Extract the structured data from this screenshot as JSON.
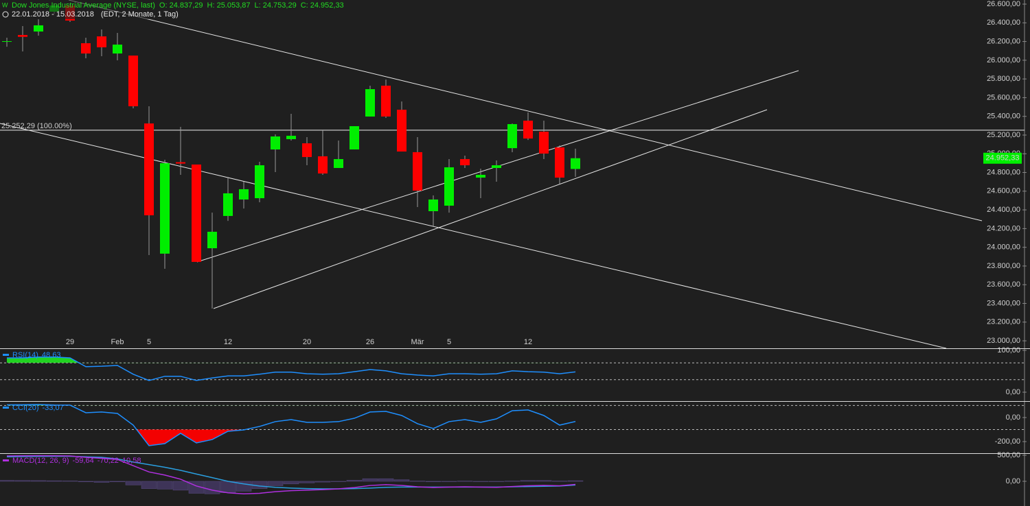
{
  "header": {
    "title": "Dow Jones Industrial Average (NYSE, last)",
    "ohlc": [
      "O: 24.837,29",
      "H: 25.053,87",
      "L: 24.753,29",
      "C: 24.952,33"
    ],
    "range": "22.01.2018 - 15.03.2018",
    "info": "(EDT, 2 Monate, 1 Tag)"
  },
  "chart_data": [
    {
      "type": "candlestick",
      "categories": [
        null,
        null,
        null,
        null,
        "29",
        null,
        null,
        "Feb",
        null,
        "5",
        null,
        null,
        null,
        null,
        "12",
        null,
        null,
        null,
        null,
        "20",
        null,
        null,
        null,
        "26",
        null,
        null,
        "Mär",
        null,
        "5",
        null,
        null,
        null,
        null,
        "12",
        null,
        null,
        null
      ],
      "open": [
        26204,
        26270,
        26307,
        26519,
        26585,
        26182,
        26255,
        26072,
        26050,
        25324,
        23932,
        24910,
        24885,
        23990,
        24335,
        24511,
        24525,
        25046,
        25156,
        25112,
        24973,
        24848,
        25046,
        25398,
        25728,
        25471,
        25017,
        24386,
        24445,
        24943,
        24745,
        24848,
        25060,
        25354,
        25236,
        25068,
        24837.29
      ],
      "high": [
        26241,
        26365,
        26439,
        26607,
        26607,
        26241,
        26329,
        26292,
        26050,
        25508,
        24936,
        25288,
        24885,
        24371,
        24753,
        24701,
        24914,
        25207,
        25427,
        25178,
        25251,
        25141,
        25295,
        25728,
        25794,
        25559,
        25178,
        24555,
        24943,
        24980,
        24841,
        24929,
        25324,
        25442,
        25354,
        25090,
        25053.87
      ],
      "low": [
        26145,
        26094,
        26263,
        26497,
        26409,
        26021,
        26043,
        25999,
        25486,
        23917,
        23770,
        24775,
        23844,
        23345,
        24283,
        24415,
        24481,
        24804,
        25141,
        24877,
        24775,
        24848,
        25046,
        25398,
        25383,
        25024,
        24430,
        24225,
        24371,
        24848,
        24525,
        24701,
        25017,
        25148,
        24943,
        24679,
        24753.29
      ],
      "close": [
        26204,
        26250,
        26373,
        26585,
        26424,
        26072,
        26138,
        26167,
        25508,
        24342,
        24899,
        24895,
        23844,
        24166,
        24577,
        24621,
        24877,
        25185,
        25192,
        24965,
        24789,
        24943,
        25295,
        25691,
        25398,
        25024,
        24606,
        24511,
        24855,
        24877,
        24775,
        24877,
        25317,
        25163,
        25002,
        24745,
        24952.33
      ],
      "up_color": "#00ee00",
      "down_color": "#ff0000",
      "ylim": [
        22920,
        26644
      ],
      "yticks": [
        {
          "value": 26600,
          "label": "26.600,00"
        },
        {
          "value": 26400,
          "label": "26.400,00"
        },
        {
          "value": 26200,
          "label": "26.200,00"
        },
        {
          "value": 26000,
          "label": "26.000,00"
        },
        {
          "value": 25800,
          "label": "25.800,00"
        },
        {
          "value": 25600,
          "label": "25.600,00"
        },
        {
          "value": 25400,
          "label": "25.400,00"
        },
        {
          "value": 25200,
          "label": "25.200,00"
        },
        {
          "value": 25000,
          "label": "25.000,00"
        },
        {
          "value": 24800,
          "label": "24.800,00"
        },
        {
          "value": 24600,
          "label": "24.600,00"
        },
        {
          "value": 24400,
          "label": "24.400,00"
        },
        {
          "value": 24200,
          "label": "24.200,00"
        },
        {
          "value": 24000,
          "label": "24.000,00"
        },
        {
          "value": 23800,
          "label": "23.800,00"
        },
        {
          "value": 23600,
          "label": "23.600,00"
        },
        {
          "value": 23400,
          "label": "23.400,00"
        },
        {
          "value": 23200,
          "label": "23.200,00"
        },
        {
          "value": 23000,
          "label": "23.000,00"
        }
      ],
      "annotations": [
        {
          "value": 25252.29,
          "label": "25.252,29 (100.00%)"
        }
      ],
      "last_value_label": "24.952,33"
    },
    {
      "type": "line",
      "name": "RSI(14)",
      "value_label": "48,63",
      "color": "#1e8fff",
      "values": [
        82,
        82,
        84,
        84,
        82,
        61,
        62,
        64,
        43,
        28,
        38,
        38,
        28,
        34,
        39,
        39,
        43,
        48,
        48,
        44,
        43,
        44,
        49,
        54,
        51,
        44,
        41,
        39,
        44,
        44,
        43,
        44,
        51,
        49,
        48,
        44,
        48.63
      ],
      "ylim": [
        -19.7,
        103.3
      ],
      "yticks": [
        {
          "value": 100,
          "label": "100,00"
        },
        {
          "value": 0,
          "label": "0,00"
        }
      ],
      "levels": [
        70,
        30
      ],
      "fills": [
        {
          "level": 70,
          "side": "above",
          "color": "#22dd22"
        }
      ]
    },
    {
      "type": "line",
      "name": "CCI(20)",
      "value_label": "-33,07",
      "color": "#1e8fff",
      "values": [
        105,
        106,
        108,
        104,
        103,
        40,
        46,
        34,
        -63,
        -234,
        -217,
        -131,
        -211,
        -183,
        -114,
        -103,
        -74,
        -34,
        -17,
        -40,
        -40,
        -34,
        -6,
        46,
        51,
        17,
        -51,
        -91,
        -34,
        -17,
        -40,
        -11,
        57,
        63,
        17,
        -63,
        -33.07
      ],
      "ylim": [
        -291,
        131
      ],
      "yticks": [
        {
          "value": 0,
          "label": "0,00"
        },
        {
          "value": -200,
          "label": "-200,00"
        }
      ],
      "levels": [
        100,
        -100
      ],
      "fills": [
        {
          "level": 100,
          "side": "above",
          "color": "#22dd22"
        },
        {
          "level": -100,
          "side": "below",
          "color": "#ff0000"
        }
      ]
    },
    {
      "type": "macd",
      "name": "MACD(12, 26, 9)",
      "color": "#b030e0",
      "series": [
        {
          "kind": "histogram",
          "color": "#3e3458",
          "value_label": "10,58",
          "values": [
            17,
            15,
            14,
            10,
            7,
            -10,
            -20,
            -10,
            -70,
            -140,
            -150,
            -170,
            -230,
            -240,
            -220,
            -190,
            -140,
            -85,
            -50,
            -30,
            -15,
            0,
            20,
            50,
            50,
            30,
            5,
            -8,
            0,
            5,
            0,
            -5,
            5,
            15,
            15,
            5,
            10.58
          ]
        },
        {
          "kind": "line",
          "color": "#2a9fe0",
          "value_label": "-70,22",
          "values": [
            470,
            475,
            478,
            480,
            480,
            470,
            460,
            430,
            370,
            320,
            270,
            210,
            140,
            70,
            0,
            -50,
            -90,
            -115,
            -130,
            -140,
            -145,
            -145,
            -140,
            -130,
            -115,
            -110,
            -110,
            -110,
            -110,
            -110,
            -110,
            -110,
            -105,
            -100,
            -95,
            -90,
            -70.22
          ]
        },
        {
          "kind": "line",
          "color": "#b030e0",
          "value_label": "-59,64",
          "values": [
            487,
            490,
            492,
            490,
            487,
            460,
            440,
            420,
            300,
            180,
            120,
            40,
            -90,
            -170,
            -220,
            -240,
            -230,
            -200,
            -180,
            -170,
            -160,
            -145,
            -120,
            -80,
            -65,
            -80,
            -105,
            -118,
            -110,
            -105,
            -110,
            -115,
            -100,
            -85,
            -80,
            -85,
            -59.64
          ]
        }
      ],
      "ylim": [
        -474,
        513
      ],
      "yticks": [
        {
          "value": 500,
          "label": "500,00"
        },
        {
          "value": 0,
          "label": "0,00"
        }
      ]
    }
  ]
}
